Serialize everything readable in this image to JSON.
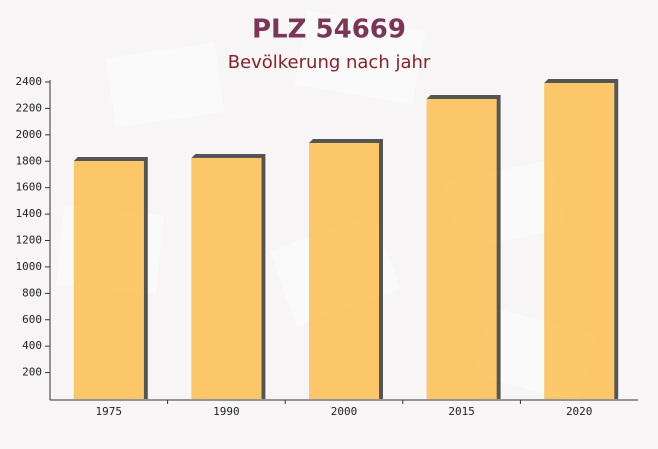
{
  "chart_data": {
    "type": "bar",
    "title": "PLZ 54669",
    "subtitle": "Bevölkerung nach jahr",
    "categories": [
      "1975",
      "1990",
      "2000",
      "2015",
      "2020"
    ],
    "values": [
      1802,
      1825,
      1938,
      2271,
      2392
    ],
    "color": "#fcc25a",
    "ylim": [
      0,
      2400
    ],
    "yticks": [
      200,
      400,
      600,
      800,
      1000,
      1200,
      1400,
      1600,
      1800,
      2000,
      2200,
      2400
    ]
  }
}
